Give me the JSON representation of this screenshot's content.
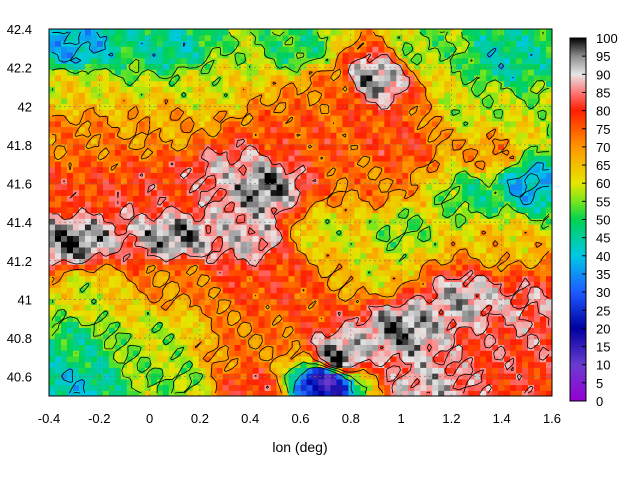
{
  "chart_data": {
    "type": "heatmap",
    "title": "",
    "xlabel": "lon (deg)",
    "ylabel": "",
    "xlim": [
      -0.4,
      1.6
    ],
    "ylim": [
      40.5,
      42.4
    ],
    "x_ticks": [
      "-0.4",
      "-0.2",
      "0",
      "0.2",
      "0.4",
      "0.6",
      "0.8",
      "1",
      "1.2",
      "1.4",
      "1.6"
    ],
    "x_tick_values": [
      -0.4,
      -0.2,
      0,
      0.2,
      0.4,
      0.6,
      0.8,
      1.0,
      1.2,
      1.4,
      1.6
    ],
    "y_ticks": [
      "40.6",
      "40.8",
      "41",
      "41.2",
      "41.4",
      "41.6",
      "41.8",
      "42",
      "42.2",
      "42.4"
    ],
    "y_tick_values": [
      40.6,
      40.8,
      41.0,
      41.2,
      41.4,
      41.6,
      41.8,
      42.0,
      42.2,
      42.4
    ],
    "colorbar": {
      "min": 0,
      "max": 100,
      "ticks": [
        "0",
        "5",
        "10",
        "15",
        "20",
        "25",
        "30",
        "35",
        "40",
        "45",
        "50",
        "55",
        "60",
        "65",
        "70",
        "75",
        "80",
        "85",
        "90",
        "95",
        "100"
      ],
      "tick_values": [
        0,
        5,
        10,
        15,
        20,
        25,
        30,
        35,
        40,
        45,
        50,
        55,
        60,
        65,
        70,
        75,
        80,
        85,
        90,
        95,
        100
      ]
    },
    "grid": true,
    "contours": true,
    "regions": [
      {
        "lon": -0.3,
        "lat": 42.3,
        "value": 38
      },
      {
        "lon": 0.1,
        "lat": 42.3,
        "value": 45
      },
      {
        "lon": 0.6,
        "lat": 42.3,
        "value": 50
      },
      {
        "lon": 1.1,
        "lat": 42.3,
        "value": 55
      },
      {
        "lon": 1.4,
        "lat": 42.25,
        "value": 45
      },
      {
        "lon": -0.3,
        "lat": 42.1,
        "value": 62
      },
      {
        "lon": 0.2,
        "lat": 42.1,
        "value": 60
      },
      {
        "lon": 0.7,
        "lat": 42.1,
        "value": 72
      },
      {
        "lon": 0.9,
        "lat": 42.15,
        "value": 95
      },
      {
        "lon": 1.3,
        "lat": 42.0,
        "value": 58
      },
      {
        "lon": -0.3,
        "lat": 41.85,
        "value": 72
      },
      {
        "lon": 0.1,
        "lat": 41.9,
        "value": 68
      },
      {
        "lon": 0.6,
        "lat": 41.85,
        "value": 76
      },
      {
        "lon": 1.0,
        "lat": 41.8,
        "value": 78
      },
      {
        "lon": 1.35,
        "lat": 41.75,
        "value": 70
      },
      {
        "lon": -0.3,
        "lat": 41.55,
        "value": 78
      },
      {
        "lon": 0.1,
        "lat": 41.55,
        "value": 80
      },
      {
        "lon": 0.45,
        "lat": 41.58,
        "value": 97
      },
      {
        "lon": 0.3,
        "lat": 41.65,
        "value": 88
      },
      {
        "lon": 0.9,
        "lat": 41.6,
        "value": 72
      },
      {
        "lon": 1.3,
        "lat": 41.55,
        "value": 50
      },
      {
        "lon": 1.5,
        "lat": 41.6,
        "value": 38
      },
      {
        "lon": -0.3,
        "lat": 41.3,
        "value": 97
      },
      {
        "lon": 0.1,
        "lat": 41.32,
        "value": 96
      },
      {
        "lon": 0.4,
        "lat": 41.32,
        "value": 90
      },
      {
        "lon": 0.7,
        "lat": 41.35,
        "value": 60
      },
      {
        "lon": 1.0,
        "lat": 41.35,
        "value": 55
      },
      {
        "lon": 1.4,
        "lat": 41.3,
        "value": 65
      },
      {
        "lon": -0.25,
        "lat": 41.05,
        "value": 60
      },
      {
        "lon": 0.1,
        "lat": 41.1,
        "value": 70
      },
      {
        "lon": 0.5,
        "lat": 41.1,
        "value": 78
      },
      {
        "lon": 0.9,
        "lat": 41.15,
        "value": 62
      },
      {
        "lon": 1.25,
        "lat": 41.0,
        "value": 92
      },
      {
        "lon": 1.5,
        "lat": 40.95,
        "value": 85
      },
      {
        "lon": -0.3,
        "lat": 40.75,
        "value": 48
      },
      {
        "lon": 0.05,
        "lat": 40.8,
        "value": 58
      },
      {
        "lon": 0.35,
        "lat": 40.75,
        "value": 72
      },
      {
        "lon": 0.75,
        "lat": 40.7,
        "value": 98
      },
      {
        "lon": 1.0,
        "lat": 40.85,
        "value": 96
      },
      {
        "lon": 1.35,
        "lat": 40.75,
        "value": 82
      },
      {
        "lon": -0.3,
        "lat": 40.55,
        "value": 42
      },
      {
        "lon": 0.1,
        "lat": 40.58,
        "value": 55
      },
      {
        "lon": 0.4,
        "lat": 40.55,
        "value": 80
      },
      {
        "lon": 0.7,
        "lat": 40.58,
        "value": 15
      },
      {
        "lon": 1.1,
        "lat": 40.55,
        "value": 90
      },
      {
        "lon": 1.5,
        "lat": 40.55,
        "value": 80
      }
    ]
  }
}
